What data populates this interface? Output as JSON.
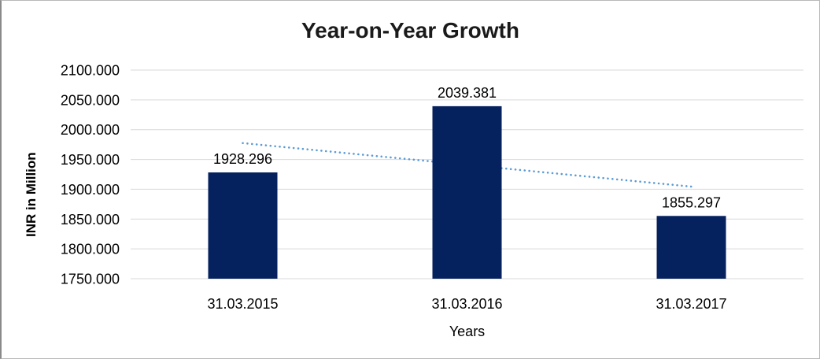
{
  "chart_data": {
    "type": "bar",
    "title": "Year-on-Year Growth",
    "ylabel": "INR in Million",
    "xlabel": "Years",
    "categories": [
      "31.03.2015",
      "31.03.2016",
      "31.03.2017"
    ],
    "values": [
      1928.296,
      2039.381,
      1855.297
    ],
    "data_labels": [
      "1928.296",
      "2039.381",
      "1855.297"
    ],
    "ylim": [
      1750,
      2100
    ],
    "ytick_labels": [
      "2100.000",
      "2050.000",
      "2000.000",
      "1950.000",
      "1900.000",
      "1850.000",
      "1800.000",
      "1750.000"
    ],
    "grid": true,
    "legend": "none",
    "trendline": {
      "type": "linear",
      "style": "dotted"
    },
    "colors": {
      "bar": "#05225E",
      "trendline": "#5B9BD5",
      "gridline": "#D9D9D9",
      "text": "#000000",
      "title": "#1A1A1A"
    }
  }
}
